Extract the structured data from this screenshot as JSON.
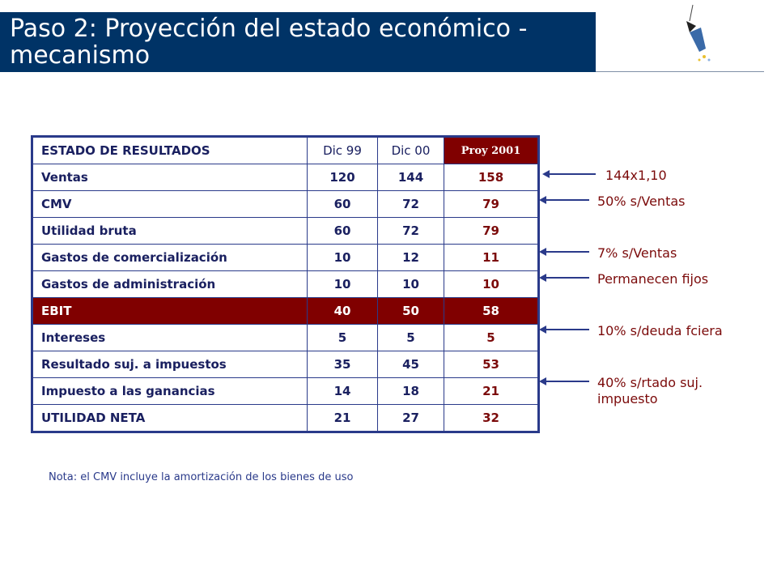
{
  "title": "Paso 2: Proyección del estado económico - mecanismo",
  "table": {
    "header": [
      "ESTADO DE RESULTADOS",
      "Dic 99",
      "Dic 00",
      "Proy 2001"
    ],
    "rows": [
      {
        "label": "Ventas",
        "dic99": "120",
        "dic00": "144",
        "proy": "158"
      },
      {
        "label": "CMV",
        "dic99": "60",
        "dic00": "72",
        "proy": "79"
      },
      {
        "label": "Utilidad bruta",
        "dic99": "60",
        "dic00": "72",
        "proy": "79"
      },
      {
        "label": "Gastos de comercialización",
        "dic99": "10",
        "dic00": "12",
        "proy": "11"
      },
      {
        "label": "Gastos de administración",
        "dic99": "10",
        "dic00": "10",
        "proy": "10"
      },
      {
        "label": "EBIT",
        "dic99": "40",
        "dic00": "50",
        "proy": "58"
      },
      {
        "label": "Intereses",
        "dic99": "5",
        "dic00": "5",
        "proy": "5"
      },
      {
        "label": "Resultado suj. a impuestos",
        "dic99": "35",
        "dic00": "45",
        "proy": "53"
      },
      {
        "label": "Impuesto a las ganancias",
        "dic99": "14",
        "dic00": "18",
        "proy": "21"
      },
      {
        "label": "UTILIDAD NETA",
        "dic99": "21",
        "dic00": "27",
        "proy": "32"
      }
    ]
  },
  "annotations": [
    "144x1,10",
    "50% s/Ventas",
    "7% s/Ventas",
    "Permanecen fijos",
    "10% s/deuda fciera",
    "40% s/rtado suj. impuesto"
  ],
  "note": "Nota: el CMV incluye la amortización de los bienes de uso",
  "colors": {
    "title_bg": "#003366",
    "highlight": "#800000",
    "text": "#1a2060"
  }
}
